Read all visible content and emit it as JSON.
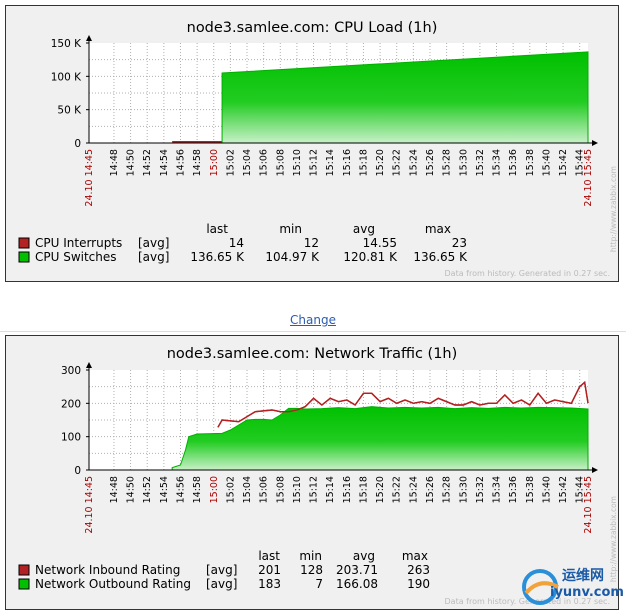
{
  "link": {
    "change": "Change"
  },
  "colors": {
    "red": "#b22222",
    "green": "#00c000",
    "axis_red": "#aa0000"
  },
  "watermark": {
    "site_cn": "运维网",
    "site_en": "iyunv.com"
  },
  "chart_data": [
    {
      "type": "area",
      "title": "node3.samlee.com: CPU Load (1h)",
      "y_ticks": [
        "150 K",
        "100 K",
        "50 K",
        "0"
      ],
      "ylim": [
        0,
        150000
      ],
      "x_start_label": "24.10 14:45",
      "x_end_label": "24.10 15:45",
      "x_ticks": [
        "14:48",
        "14:50",
        "14:52",
        "14:54",
        "14:56",
        "14:58",
        "15:00",
        "15:02",
        "15:04",
        "15:06",
        "15:08",
        "15:10",
        "15:12",
        "15:14",
        "15:16",
        "15:18",
        "15:20",
        "15:22",
        "15:24",
        "15:26",
        "15:28",
        "15:30",
        "15:32",
        "15:34",
        "15:36",
        "15:38",
        "15:40",
        "15:42",
        "15:44"
      ],
      "legend_headers": [
        "last",
        "min",
        "avg",
        "max"
      ],
      "series": [
        {
          "name": "CPU Interrupts",
          "func": "[avg]",
          "color": "#b22222",
          "last": "14",
          "min": "12",
          "avg": "14.55",
          "max": "23",
          "x": [
            10,
            60
          ],
          "y": [
            14,
            14
          ],
          "style": "line"
        },
        {
          "name": "CPU Switches",
          "func": "[avg]",
          "color": "#00c000",
          "last": "136.65 K",
          "min": "104.97 K",
          "avg": "120.81 K",
          "max": "136.65 K",
          "x": [
            16,
            60
          ],
          "y": [
            104970,
            136650
          ],
          "style": "area"
        }
      ],
      "footer": "Data from history. Generated in 0.27 sec.",
      "side_text": "http://www.zabbix.com"
    },
    {
      "type": "area",
      "title": "node3.samlee.com: Network Traffic (1h)",
      "y_ticks": [
        "300",
        "200",
        "100",
        "0"
      ],
      "ylim": [
        0,
        300
      ],
      "x_start_label": "24.10 14:45",
      "x_end_label": "24.10 15:45",
      "x_ticks": [
        "14:48",
        "14:50",
        "14:52",
        "14:54",
        "14:56",
        "14:58",
        "15:00",
        "15:02",
        "15:04",
        "15:06",
        "15:08",
        "15:10",
        "15:12",
        "15:14",
        "15:16",
        "15:18",
        "15:20",
        "15:22",
        "15:24",
        "15:26",
        "15:28",
        "15:30",
        "15:32",
        "15:34",
        "15:36",
        "15:38",
        "15:40",
        "15:42",
        "15:44"
      ],
      "legend_headers": [
        "last",
        "min",
        "avg",
        "max"
      ],
      "series": [
        {
          "name": "Network Inbound Rating",
          "func": "[avg]",
          "color": "#b22222",
          "last": "201",
          "min": "128",
          "avg": "203.71",
          "max": "263",
          "x": [
            15.5,
            16,
            18,
            20,
            22,
            23,
            24,
            25,
            26,
            27,
            28,
            29,
            30,
            31,
            32,
            33,
            34,
            35,
            36,
            37,
            38,
            39,
            40,
            41,
            42,
            43,
            44,
            45,
            46,
            47,
            48,
            49,
            50,
            51,
            52,
            53,
            54,
            55,
            56,
            57,
            58,
            59,
            59.6,
            60
          ],
          "y": [
            128,
            150,
            145,
            175,
            180,
            175,
            175,
            180,
            190,
            215,
            195,
            215,
            205,
            210,
            195,
            230,
            230,
            205,
            215,
            200,
            210,
            200,
            205,
            200,
            215,
            205,
            195,
            195,
            205,
            195,
            200,
            200,
            225,
            200,
            210,
            195,
            230,
            200,
            210,
            205,
            200,
            250,
            263,
            201
          ]
        },
        {
          "name": "Network Outbound Rating",
          "func": "[avg]",
          "color": "#00c000",
          "last": "183",
          "min": "7",
          "avg": "166.08",
          "max": "190",
          "x": [
            10,
            11,
            11.6,
            12,
            13,
            16,
            17,
            19,
            20,
            21,
            22,
            23,
            24,
            25,
            26,
            28,
            30,
            32,
            34,
            36,
            38,
            40,
            42,
            44,
            46,
            48,
            50,
            52,
            54,
            56,
            58,
            60
          ],
          "y": [
            7,
            15,
            60,
            100,
            108,
            110,
            120,
            150,
            152,
            152,
            150,
            165,
            185,
            185,
            183,
            184,
            187,
            184,
            190,
            186,
            188,
            186,
            188,
            184,
            187,
            185,
            188,
            186,
            188,
            187,
            186,
            183
          ]
        }
      ],
      "footer": "Data from history. Generated in 0.27 sec.",
      "side_text": "http://www.zabbix.com"
    }
  ]
}
